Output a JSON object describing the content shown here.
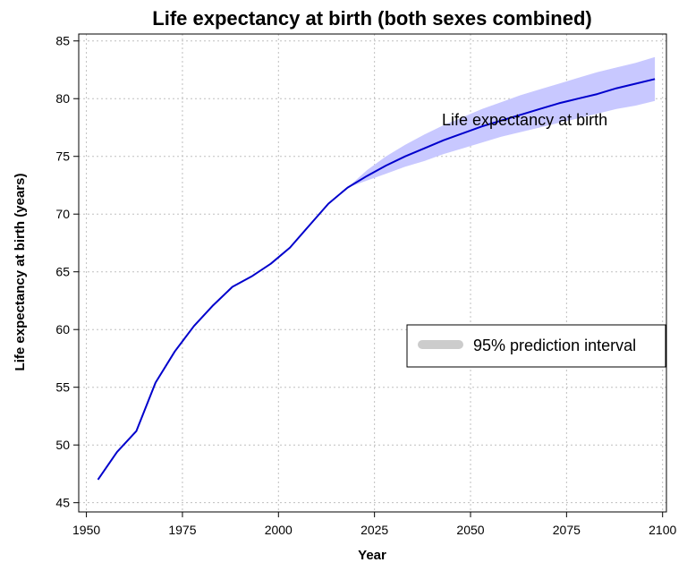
{
  "chart_data": {
    "type": "line",
    "title": "Life expectancy at birth (both sexes combined)",
    "xlabel": "Year",
    "ylabel": "Life expectancy at birth (years)",
    "xlim": [
      1948,
      2101
    ],
    "ylim": [
      44.2,
      85.6
    ],
    "xticks": [
      1950,
      1975,
      2000,
      2025,
      2050,
      2075,
      2100
    ],
    "yticks": [
      45,
      50,
      55,
      60,
      65,
      70,
      75,
      80,
      85
    ],
    "grid": true,
    "series": [
      {
        "color": "#0000cc",
        "x": [
          1953,
          1958,
          1963,
          1968,
          1973,
          1978,
          1983,
          1988,
          1993,
          1998,
          2003,
          2008,
          2013,
          2018,
          2023,
          2028,
          2033,
          2038,
          2043,
          2048,
          2053,
          2058,
          2063,
          2068,
          2073,
          2078,
          2083,
          2088,
          2093,
          2098
        ],
        "y": [
          47.0,
          49.4,
          51.2,
          55.4,
          58.1,
          60.3,
          62.1,
          63.7,
          64.6,
          65.7,
          67.1,
          69.0,
          70.9,
          72.3,
          73.3,
          74.2,
          75.0,
          75.7,
          76.4,
          77.0,
          77.6,
          78.1,
          78.6,
          79.1,
          79.6,
          80.0,
          80.4,
          80.9,
          81.3,
          81.7
        ]
      }
    ],
    "prediction_interval": {
      "color": "#c8c8ff",
      "x": [
        2018,
        2023,
        2028,
        2033,
        2038,
        2043,
        2048,
        2053,
        2058,
        2063,
        2068,
        2073,
        2078,
        2083,
        2088,
        2093,
        2098
      ],
      "lower": [
        72.3,
        72.9,
        73.5,
        74.1,
        74.6,
        75.2,
        75.7,
        76.2,
        76.7,
        77.1,
        77.5,
        77.9,
        78.3,
        78.7,
        79.1,
        79.4,
        79.8
      ],
      "upper": [
        72.3,
        73.8,
        75.0,
        76.0,
        76.9,
        77.7,
        78.4,
        79.1,
        79.7,
        80.3,
        80.8,
        81.3,
        81.8,
        82.3,
        82.7,
        83.1,
        83.6
      ]
    },
    "annotation": "Life expectancy at birth",
    "legend": {
      "position": "right",
      "entries": [
        {
          "label": "95% prediction interval",
          "color": "#cccccc"
        }
      ]
    }
  }
}
